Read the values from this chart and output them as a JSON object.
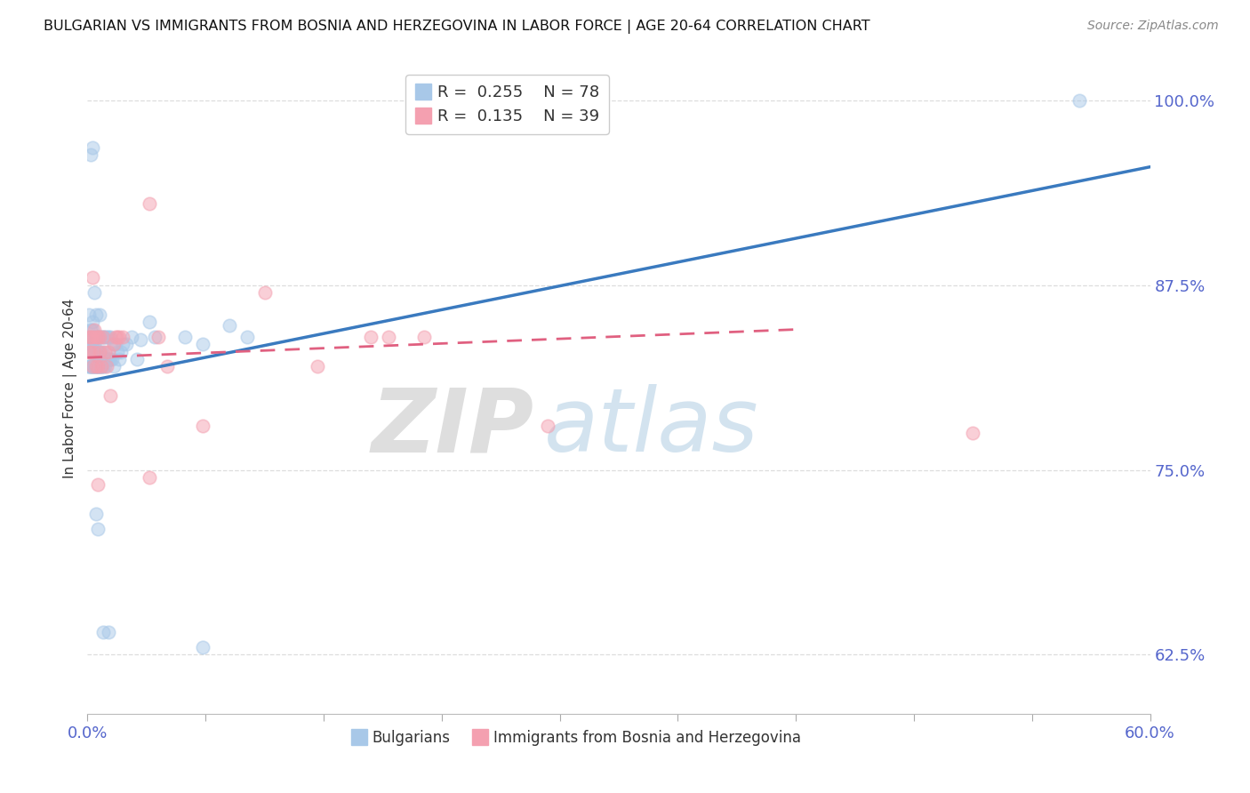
{
  "title": "BULGARIAN VS IMMIGRANTS FROM BOSNIA AND HERZEGOVINA IN LABOR FORCE | AGE 20-64 CORRELATION CHART",
  "source": "Source: ZipAtlas.com",
  "ylabel": "In Labor Force | Age 20-64",
  "legend_label1": "Bulgarians",
  "legend_label2": "Immigrants from Bosnia and Herzegovina",
  "R1": 0.255,
  "N1": 78,
  "R2": 0.135,
  "N2": 39,
  "color1": "#a8c8e8",
  "color2": "#f4a0b0",
  "line_color1": "#3a7abf",
  "line_color2": "#e06080",
  "xlim": [
    0.0,
    0.6
  ],
  "ylim": [
    0.585,
    1.025
  ],
  "yticks": [
    0.625,
    0.75,
    0.875,
    1.0
  ],
  "ytick_labels": [
    "62.5%",
    "75.0%",
    "87.5%",
    "100.0%"
  ],
  "xtick_positions": [
    0.0,
    0.06667,
    0.13333,
    0.2,
    0.26667,
    0.33333,
    0.4,
    0.46667,
    0.53333,
    0.6
  ],
  "xtick_labels_show": [
    "0.0%",
    "",
    "",
    "",
    "",
    "",
    "",
    "",
    "",
    "60.0%"
  ],
  "watermark_zip": "ZIP",
  "watermark_atlas": "atlas",
  "background_color": "#ffffff",
  "grid_color": "#dddddd",
  "blue_scatter_x": [
    0.001,
    0.001,
    0.001,
    0.001,
    0.002,
    0.002,
    0.002,
    0.002,
    0.002,
    0.003,
    0.003,
    0.003,
    0.003,
    0.003,
    0.003,
    0.003,
    0.004,
    0.004,
    0.004,
    0.004,
    0.004,
    0.005,
    0.005,
    0.005,
    0.005,
    0.005,
    0.006,
    0.006,
    0.006,
    0.006,
    0.007,
    0.007,
    0.007,
    0.007,
    0.007,
    0.008,
    0.008,
    0.008,
    0.008,
    0.009,
    0.009,
    0.009,
    0.01,
    0.01,
    0.01,
    0.011,
    0.011,
    0.012,
    0.012,
    0.013,
    0.013,
    0.014,
    0.015,
    0.015,
    0.016,
    0.017,
    0.018,
    0.019,
    0.02,
    0.022,
    0.025,
    0.028,
    0.03,
    0.035,
    0.038,
    0.055,
    0.065,
    0.065,
    0.08,
    0.09,
    0.004,
    0.005,
    0.006,
    0.009,
    0.012,
    0.56,
    0.003,
    0.002
  ],
  "blue_scatter_y": [
    0.82,
    0.84,
    0.855,
    0.82,
    0.82,
    0.835,
    0.845,
    0.82,
    0.835,
    0.82,
    0.83,
    0.84,
    0.85,
    0.82,
    0.835,
    0.845,
    0.82,
    0.83,
    0.84,
    0.82,
    0.835,
    0.82,
    0.83,
    0.84,
    0.82,
    0.855,
    0.82,
    0.83,
    0.84,
    0.82,
    0.82,
    0.83,
    0.84,
    0.82,
    0.855,
    0.82,
    0.83,
    0.84,
    0.82,
    0.82,
    0.83,
    0.84,
    0.825,
    0.84,
    0.82,
    0.825,
    0.84,
    0.825,
    0.84,
    0.825,
    0.84,
    0.825,
    0.835,
    0.82,
    0.835,
    0.83,
    0.825,
    0.83,
    0.835,
    0.835,
    0.84,
    0.825,
    0.838,
    0.85,
    0.84,
    0.84,
    0.835,
    0.63,
    0.848,
    0.84,
    0.87,
    0.72,
    0.71,
    0.64,
    0.64,
    1.0,
    0.968,
    0.963
  ],
  "pink_scatter_x": [
    0.001,
    0.001,
    0.002,
    0.002,
    0.003,
    0.003,
    0.004,
    0.004,
    0.005,
    0.005,
    0.006,
    0.006,
    0.007,
    0.007,
    0.008,
    0.009,
    0.01,
    0.011,
    0.012,
    0.013,
    0.015,
    0.016,
    0.017,
    0.018,
    0.02,
    0.035,
    0.04,
    0.045,
    0.065,
    0.1,
    0.13,
    0.16,
    0.17,
    0.19,
    0.26,
    0.035,
    0.5,
    0.003,
    0.006
  ],
  "pink_scatter_y": [
    0.83,
    0.84,
    0.83,
    0.84,
    0.82,
    0.84,
    0.83,
    0.845,
    0.82,
    0.84,
    0.82,
    0.84,
    0.83,
    0.84,
    0.82,
    0.84,
    0.83,
    0.82,
    0.83,
    0.8,
    0.835,
    0.84,
    0.84,
    0.84,
    0.84,
    0.93,
    0.84,
    0.82,
    0.78,
    0.87,
    0.82,
    0.84,
    0.84,
    0.84,
    0.78,
    0.745,
    0.775,
    0.88,
    0.74
  ],
  "blue_line_x": [
    0.0,
    0.6
  ],
  "blue_line_y": [
    0.81,
    0.955
  ],
  "pink_line_x": [
    0.0,
    0.4
  ],
  "pink_line_y": [
    0.826,
    0.845
  ]
}
